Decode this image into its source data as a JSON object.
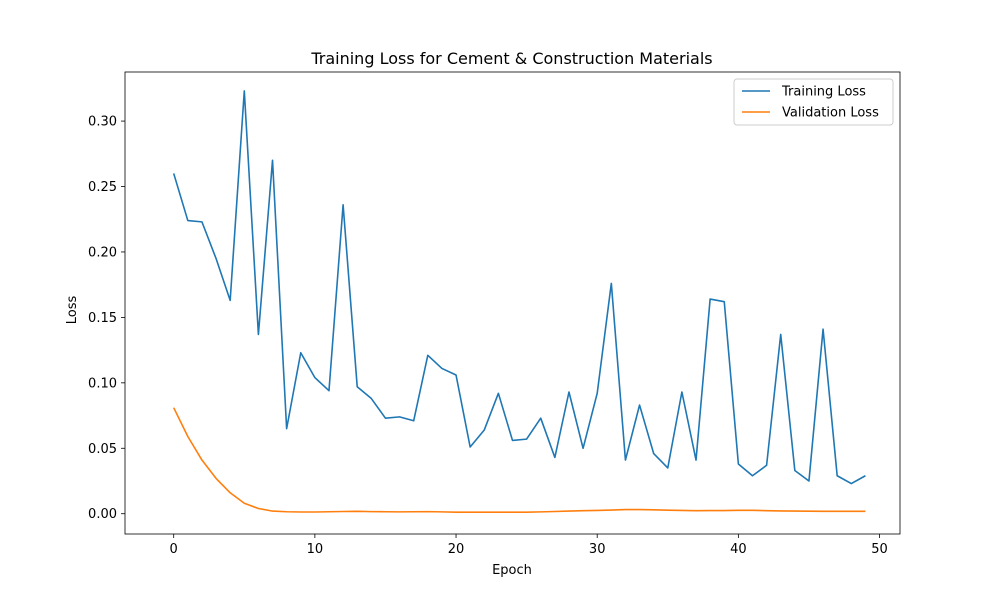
{
  "chart_data": {
    "type": "line",
    "title": "Training Loss for Cement & Construction Materials",
    "xlabel": "Epoch",
    "ylabel": "Loss",
    "xlim": [
      -3.45,
      51.45
    ],
    "ylim": [
      -0.0155,
      0.3375
    ],
    "xticks": [
      0,
      10,
      20,
      30,
      40,
      50
    ],
    "xtick_labels": [
      "0",
      "10",
      "20",
      "30",
      "40",
      "50"
    ],
    "yticks": [
      0.0,
      0.05,
      0.1,
      0.15,
      0.2,
      0.25,
      0.3
    ],
    "ytick_labels": [
      "0.00",
      "0.05",
      "0.10",
      "0.15",
      "0.20",
      "0.25",
      "0.30"
    ],
    "grid": false,
    "legend_position": "top-right",
    "x": [
      0,
      1,
      2,
      3,
      4,
      5,
      6,
      7,
      8,
      9,
      10,
      11,
      12,
      13,
      14,
      15,
      16,
      17,
      18,
      19,
      20,
      21,
      22,
      23,
      24,
      25,
      26,
      27,
      28,
      29,
      30,
      31,
      32,
      33,
      34,
      35,
      36,
      37,
      38,
      39,
      40,
      41,
      42,
      43,
      44,
      45,
      46,
      47,
      48,
      49
    ],
    "series": [
      {
        "name": "Training Loss",
        "color": "#1f77b4",
        "values": [
          0.26,
          0.224,
          0.223,
          0.195,
          0.163,
          0.323,
          0.137,
          0.27,
          0.065,
          0.123,
          0.104,
          0.094,
          0.236,
          0.097,
          0.088,
          0.073,
          0.074,
          0.071,
          0.121,
          0.111,
          0.106,
          0.051,
          0.064,
          0.092,
          0.056,
          0.057,
          0.073,
          0.043,
          0.093,
          0.05,
          0.092,
          0.176,
          0.041,
          0.083,
          0.046,
          0.035,
          0.093,
          0.041,
          0.164,
          0.162,
          0.038,
          0.029,
          0.037,
          0.137,
          0.033,
          0.025,
          0.141,
          0.029,
          0.023,
          0.029
        ]
      },
      {
        "name": "Validation Loss",
        "color": "#ff7f0e",
        "values": [
          0.081,
          0.059,
          0.041,
          0.027,
          0.016,
          0.008,
          0.004,
          0.002,
          0.0015,
          0.0013,
          0.0013,
          0.0015,
          0.0017,
          0.0018,
          0.0016,
          0.0015,
          0.0014,
          0.0015,
          0.0016,
          0.0014,
          0.0012,
          0.0012,
          0.0012,
          0.0012,
          0.0012,
          0.0012,
          0.0014,
          0.0017,
          0.002,
          0.0023,
          0.0025,
          0.0028,
          0.0032,
          0.0032,
          0.003,
          0.0027,
          0.0025,
          0.0023,
          0.0024,
          0.0024,
          0.0026,
          0.0026,
          0.0023,
          0.0021,
          0.002,
          0.0019,
          0.0018,
          0.0018,
          0.0018,
          0.0018
        ]
      }
    ]
  }
}
